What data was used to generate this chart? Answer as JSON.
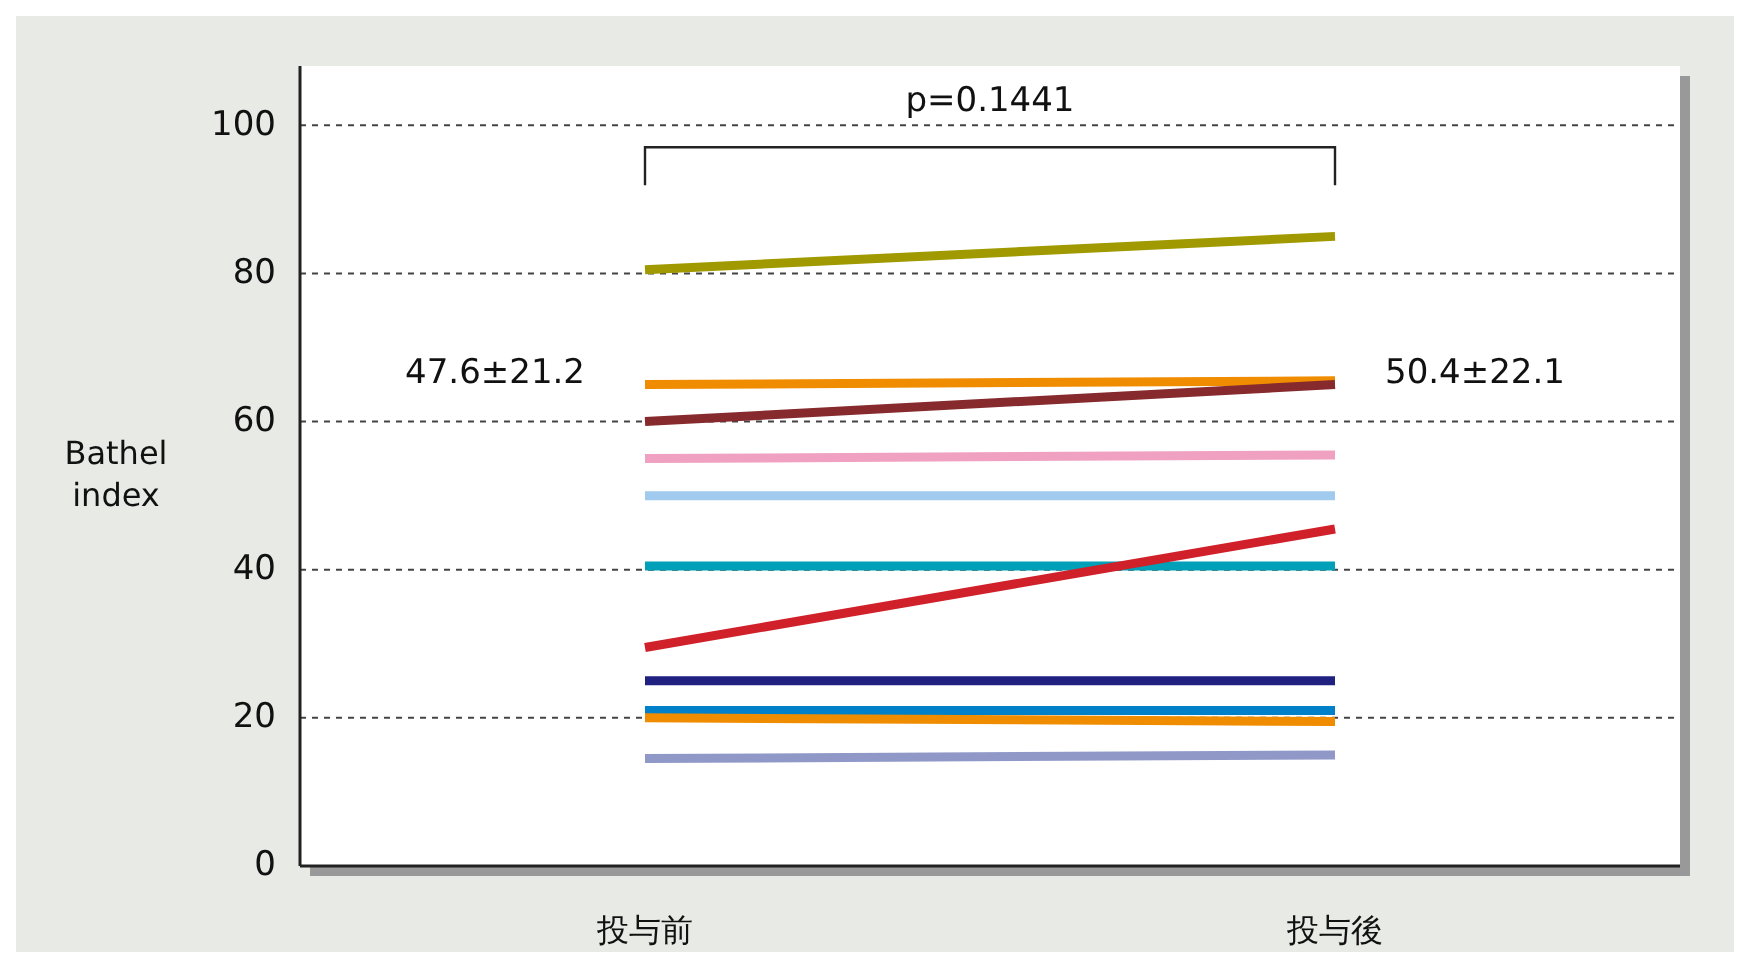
{
  "chart_data": {
    "type": "line",
    "ylabel": "Bathel index",
    "categories": [
      "投与前",
      "投与後"
    ],
    "ylim": [
      0,
      108
    ],
    "yticks": [
      0,
      20,
      40,
      60,
      80,
      100
    ],
    "grid": "y",
    "line_style": "solid",
    "marker": "none",
    "annotations": [
      "p=0.1441",
      "47.6±21.2",
      "50.4±22.1"
    ],
    "series": [
      {
        "color": "#a09a00",
        "values": [
          80.5,
          85
        ]
      },
      {
        "color": "#f08c00",
        "values": [
          65,
          65.5
        ]
      },
      {
        "color": "#862a2e",
        "values": [
          60,
          65
        ]
      },
      {
        "color": "#f0a0c0",
        "values": [
          55,
          55.5
        ]
      },
      {
        "color": "#a0cbee",
        "values": [
          50,
          50
        ]
      },
      {
        "color": "#00a0b8",
        "values": [
          40.5,
          40.5
        ]
      },
      {
        "color": "#d0202a",
        "values": [
          29.5,
          45.5
        ]
      },
      {
        "color": "#202080",
        "values": [
          25,
          25
        ]
      },
      {
        "color": "#0080c8",
        "values": [
          21,
          21
        ]
      },
      {
        "color": "#f08c00",
        "values": [
          20,
          19.5
        ]
      },
      {
        "color": "#9098c8",
        "values": [
          14.5,
          15
        ]
      }
    ]
  }
}
